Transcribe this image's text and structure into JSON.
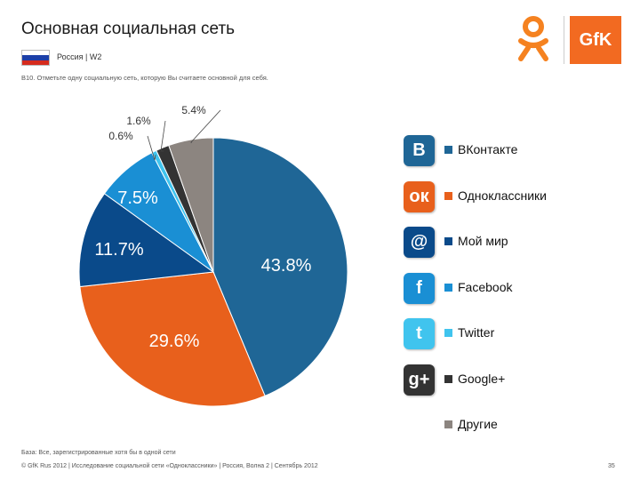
{
  "header": {
    "title": "Основная социальная сеть",
    "country_label": "Россия | W2",
    "question": "B10. Отметьте одну социальную сеть, которую Вы считаете основной для себя.",
    "logo_text": "GfK"
  },
  "colors": {
    "vkontakte": "#1f6696",
    "odnoklassniki": "#e8601c",
    "moi_mir": "#0a4a8a",
    "facebook": "#1a8fd4",
    "twitter": "#40c4ee",
    "google_plus": "#333333",
    "drugie": "#8c8580"
  },
  "chart_data": {
    "type": "pie",
    "title": "Основная социальная сеть",
    "start_angle_deg": 0,
    "direction": "clockwise",
    "slices": [
      {
        "name": "ВКонтакте",
        "value": 43.8,
        "label": "43.8%",
        "color_key": "vkontakte"
      },
      {
        "name": "Одноклассники",
        "value": 29.6,
        "label": "29.6%",
        "color_key": "odnoklassniki"
      },
      {
        "name": "Мой мир",
        "value": 11.7,
        "label": "11.7%",
        "color_key": "moi_mir"
      },
      {
        "name": "Facebook",
        "value": 7.5,
        "label": "7.5%",
        "color_key": "facebook"
      },
      {
        "name": "Twitter",
        "value": 0.6,
        "label": "0.6%",
        "color_key": "twitter"
      },
      {
        "name": "Google+",
        "value": 1.6,
        "label": "1.6%",
        "color_key": "google_plus"
      },
      {
        "name": "Другие",
        "value": 5.4,
        "label": "5.4%",
        "color_key": "drugie"
      }
    ]
  },
  "legend": [
    {
      "label": "ВКонтакте",
      "icon": "vk-icon",
      "icon_text": "B",
      "color_key": "vkontakte"
    },
    {
      "label": "Одноклассники",
      "icon": "odnoklassniki-icon",
      "icon_text": "ок",
      "color_key": "odnoklassniki"
    },
    {
      "label": "Мой мир",
      "icon": "mail-at-icon",
      "icon_text": "@",
      "color_key": "moi_mir"
    },
    {
      "label": "Facebook",
      "icon": "facebook-icon",
      "icon_text": "f",
      "color_key": "facebook"
    },
    {
      "label": "Twitter",
      "icon": "twitter-icon",
      "icon_text": "t",
      "color_key": "twitter"
    },
    {
      "label": "Google+",
      "icon": "google-plus-icon",
      "icon_text": "g+",
      "color_key": "google_plus"
    },
    {
      "label": "Другие",
      "icon": "",
      "icon_text": "",
      "color_key": "drugie"
    }
  ],
  "footer": {
    "base_note": "База: Все, зарегистрированные хотя бы в одной сети",
    "source": "© GfK Rus 2012 | Исследование социальной сети «Одноклассники» | Россия, Волна 2 | Сентябрь 2012",
    "page_number": "35"
  }
}
